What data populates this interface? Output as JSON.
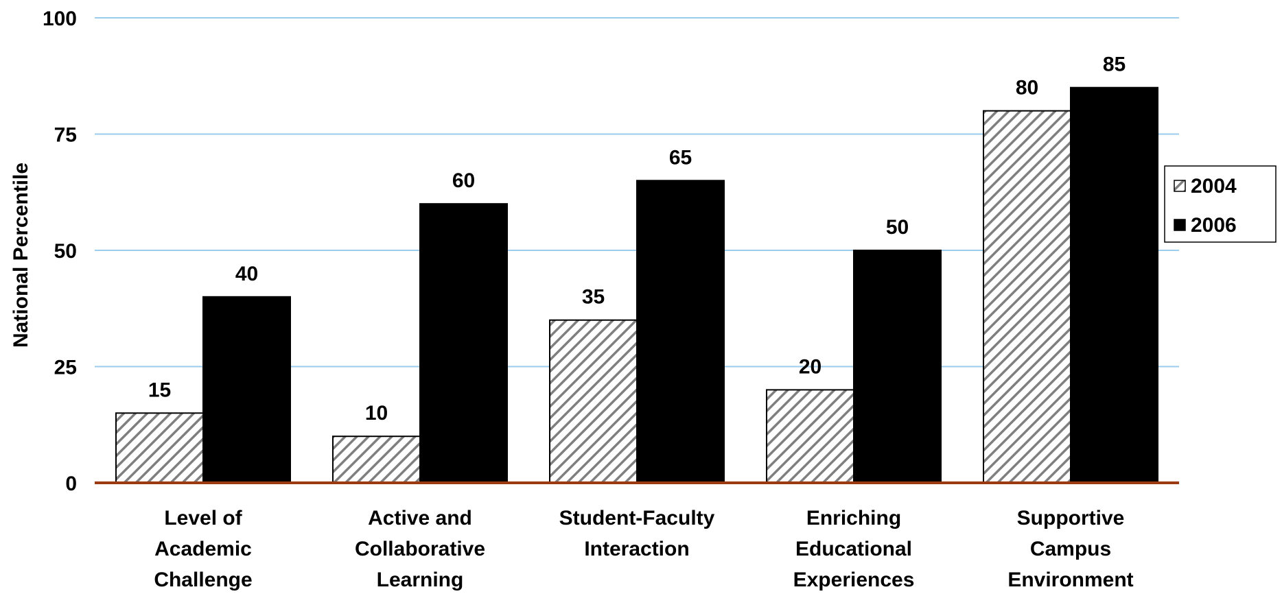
{
  "chart_data": {
    "type": "bar",
    "title": "",
    "xlabel": "",
    "ylabel": "National Percentile",
    "ylim": [
      0,
      100
    ],
    "yticks": [
      "0",
      "25",
      "50",
      "75",
      "100"
    ],
    "categories": [
      [
        "Level of",
        "Academic",
        "Challenge"
      ],
      [
        "Active and",
        "Collaborative",
        "Learning"
      ],
      [
        "Student-Faculty",
        "Interaction"
      ],
      [
        "Enriching",
        "Educational",
        "Experiences"
      ],
      [
        "Supportive",
        "Campus",
        "Environment"
      ]
    ],
    "series": [
      {
        "name": "2004",
        "values": [
          15,
          10,
          35,
          20,
          80
        ],
        "fill": "hatched",
        "color": "#808080"
      },
      {
        "name": "2006",
        "values": [
          40,
          60,
          65,
          50,
          85
        ],
        "fill": "solid",
        "color": "#000000"
      }
    ],
    "gridlines": true,
    "gridline_color": "#9dcbee",
    "baseline_color": "#9c3a12",
    "legend_position": "right"
  }
}
